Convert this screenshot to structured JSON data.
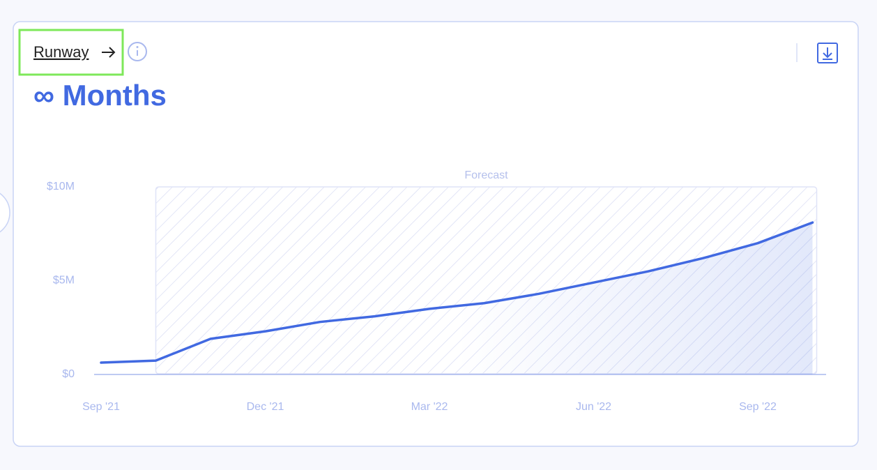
{
  "header": {
    "title": "Runway",
    "value": "∞ Months"
  },
  "chart_data": {
    "type": "line",
    "categories": [
      "Sep '21",
      null,
      null,
      "Dec '21",
      null,
      null,
      "Mar '22",
      null,
      null,
      "Jun '22",
      null,
      null,
      "Sep '22",
      null
    ],
    "values": [
      630000,
      740000,
      1900000,
      2300000,
      2800000,
      3100000,
      3500000,
      3800000,
      4300000,
      4900000,
      5500000,
      6200000,
      7000000,
      8100000
    ],
    "color": "#4169e1",
    "ylim": [
      0,
      10000000
    ],
    "yticks": [
      {
        "value": 0,
        "label": "$0"
      },
      {
        "value": 5000000,
        "label": "$5M"
      },
      {
        "value": 10000000,
        "label": "$10M"
      }
    ],
    "forecast": {
      "label": "Forecast",
      "from_index": 1
    }
  }
}
